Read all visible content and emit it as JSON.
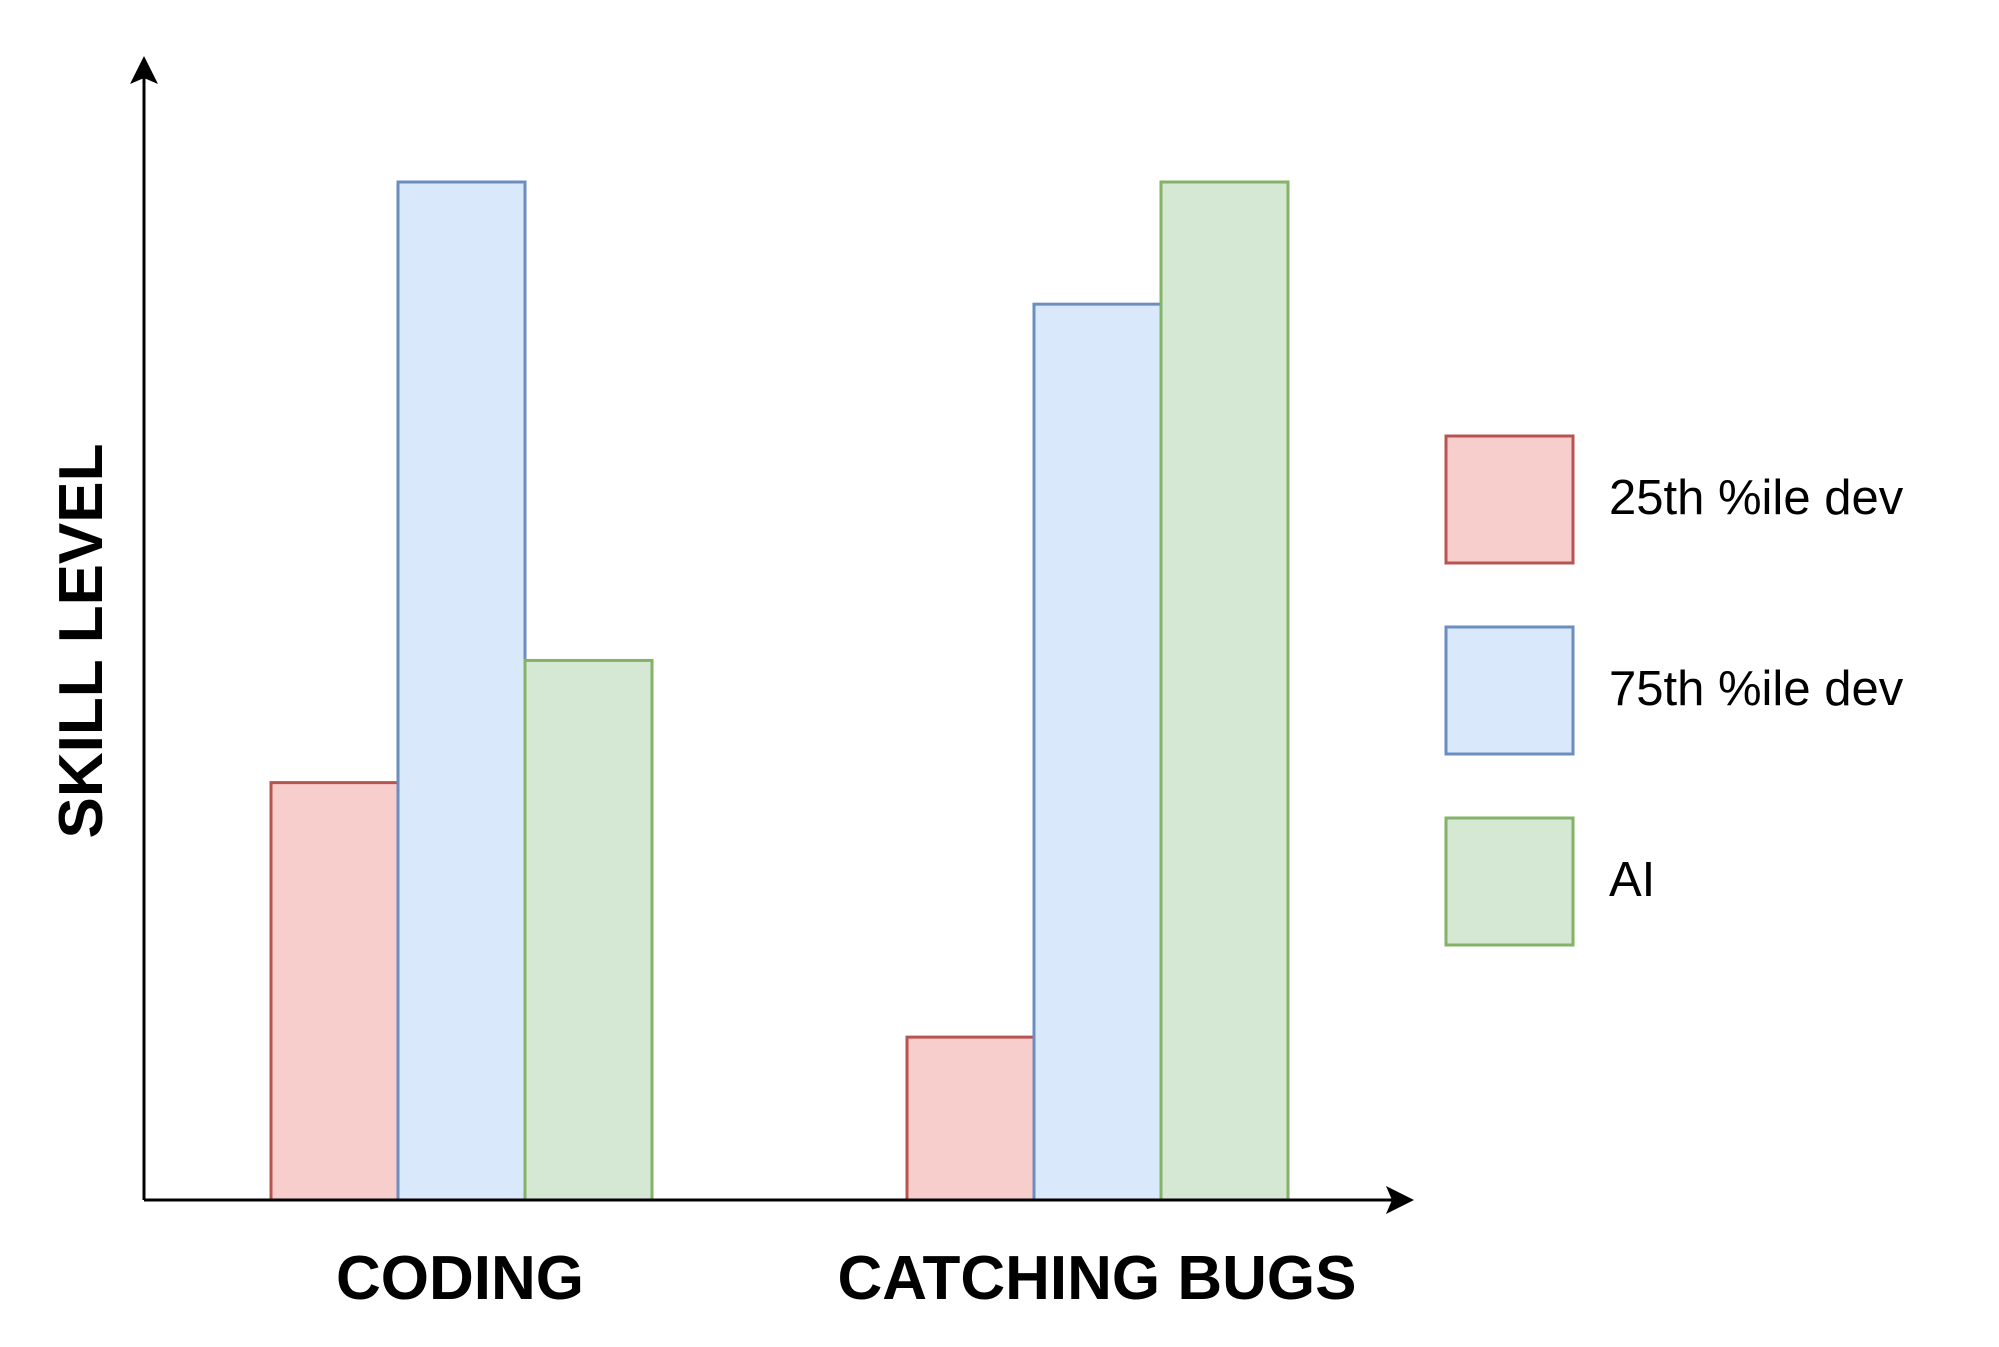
{
  "chart_data": {
    "type": "bar",
    "title": "",
    "xlabel": "",
    "ylabel": "SKILL LEVEL",
    "categories": [
      "CODING",
      "CATCHING BUGS"
    ],
    "series": [
      {
        "name": "25th %ile dev",
        "values": [
          41,
          16
        ],
        "fill": "#f8cecc",
        "stroke": "#b85450"
      },
      {
        "name": "75th %ile dev",
        "values": [
          100,
          88
        ],
        "fill": "#dae8fc",
        "stroke": "#6c8ebf"
      },
      {
        "name": "AI",
        "values": [
          53,
          100
        ],
        "fill": "#d5e8d4",
        "stroke": "#82b366"
      }
    ],
    "ylim": [
      0,
      100
    ],
    "grid": false,
    "legend": "right",
    "tick_labels_y": false
  }
}
